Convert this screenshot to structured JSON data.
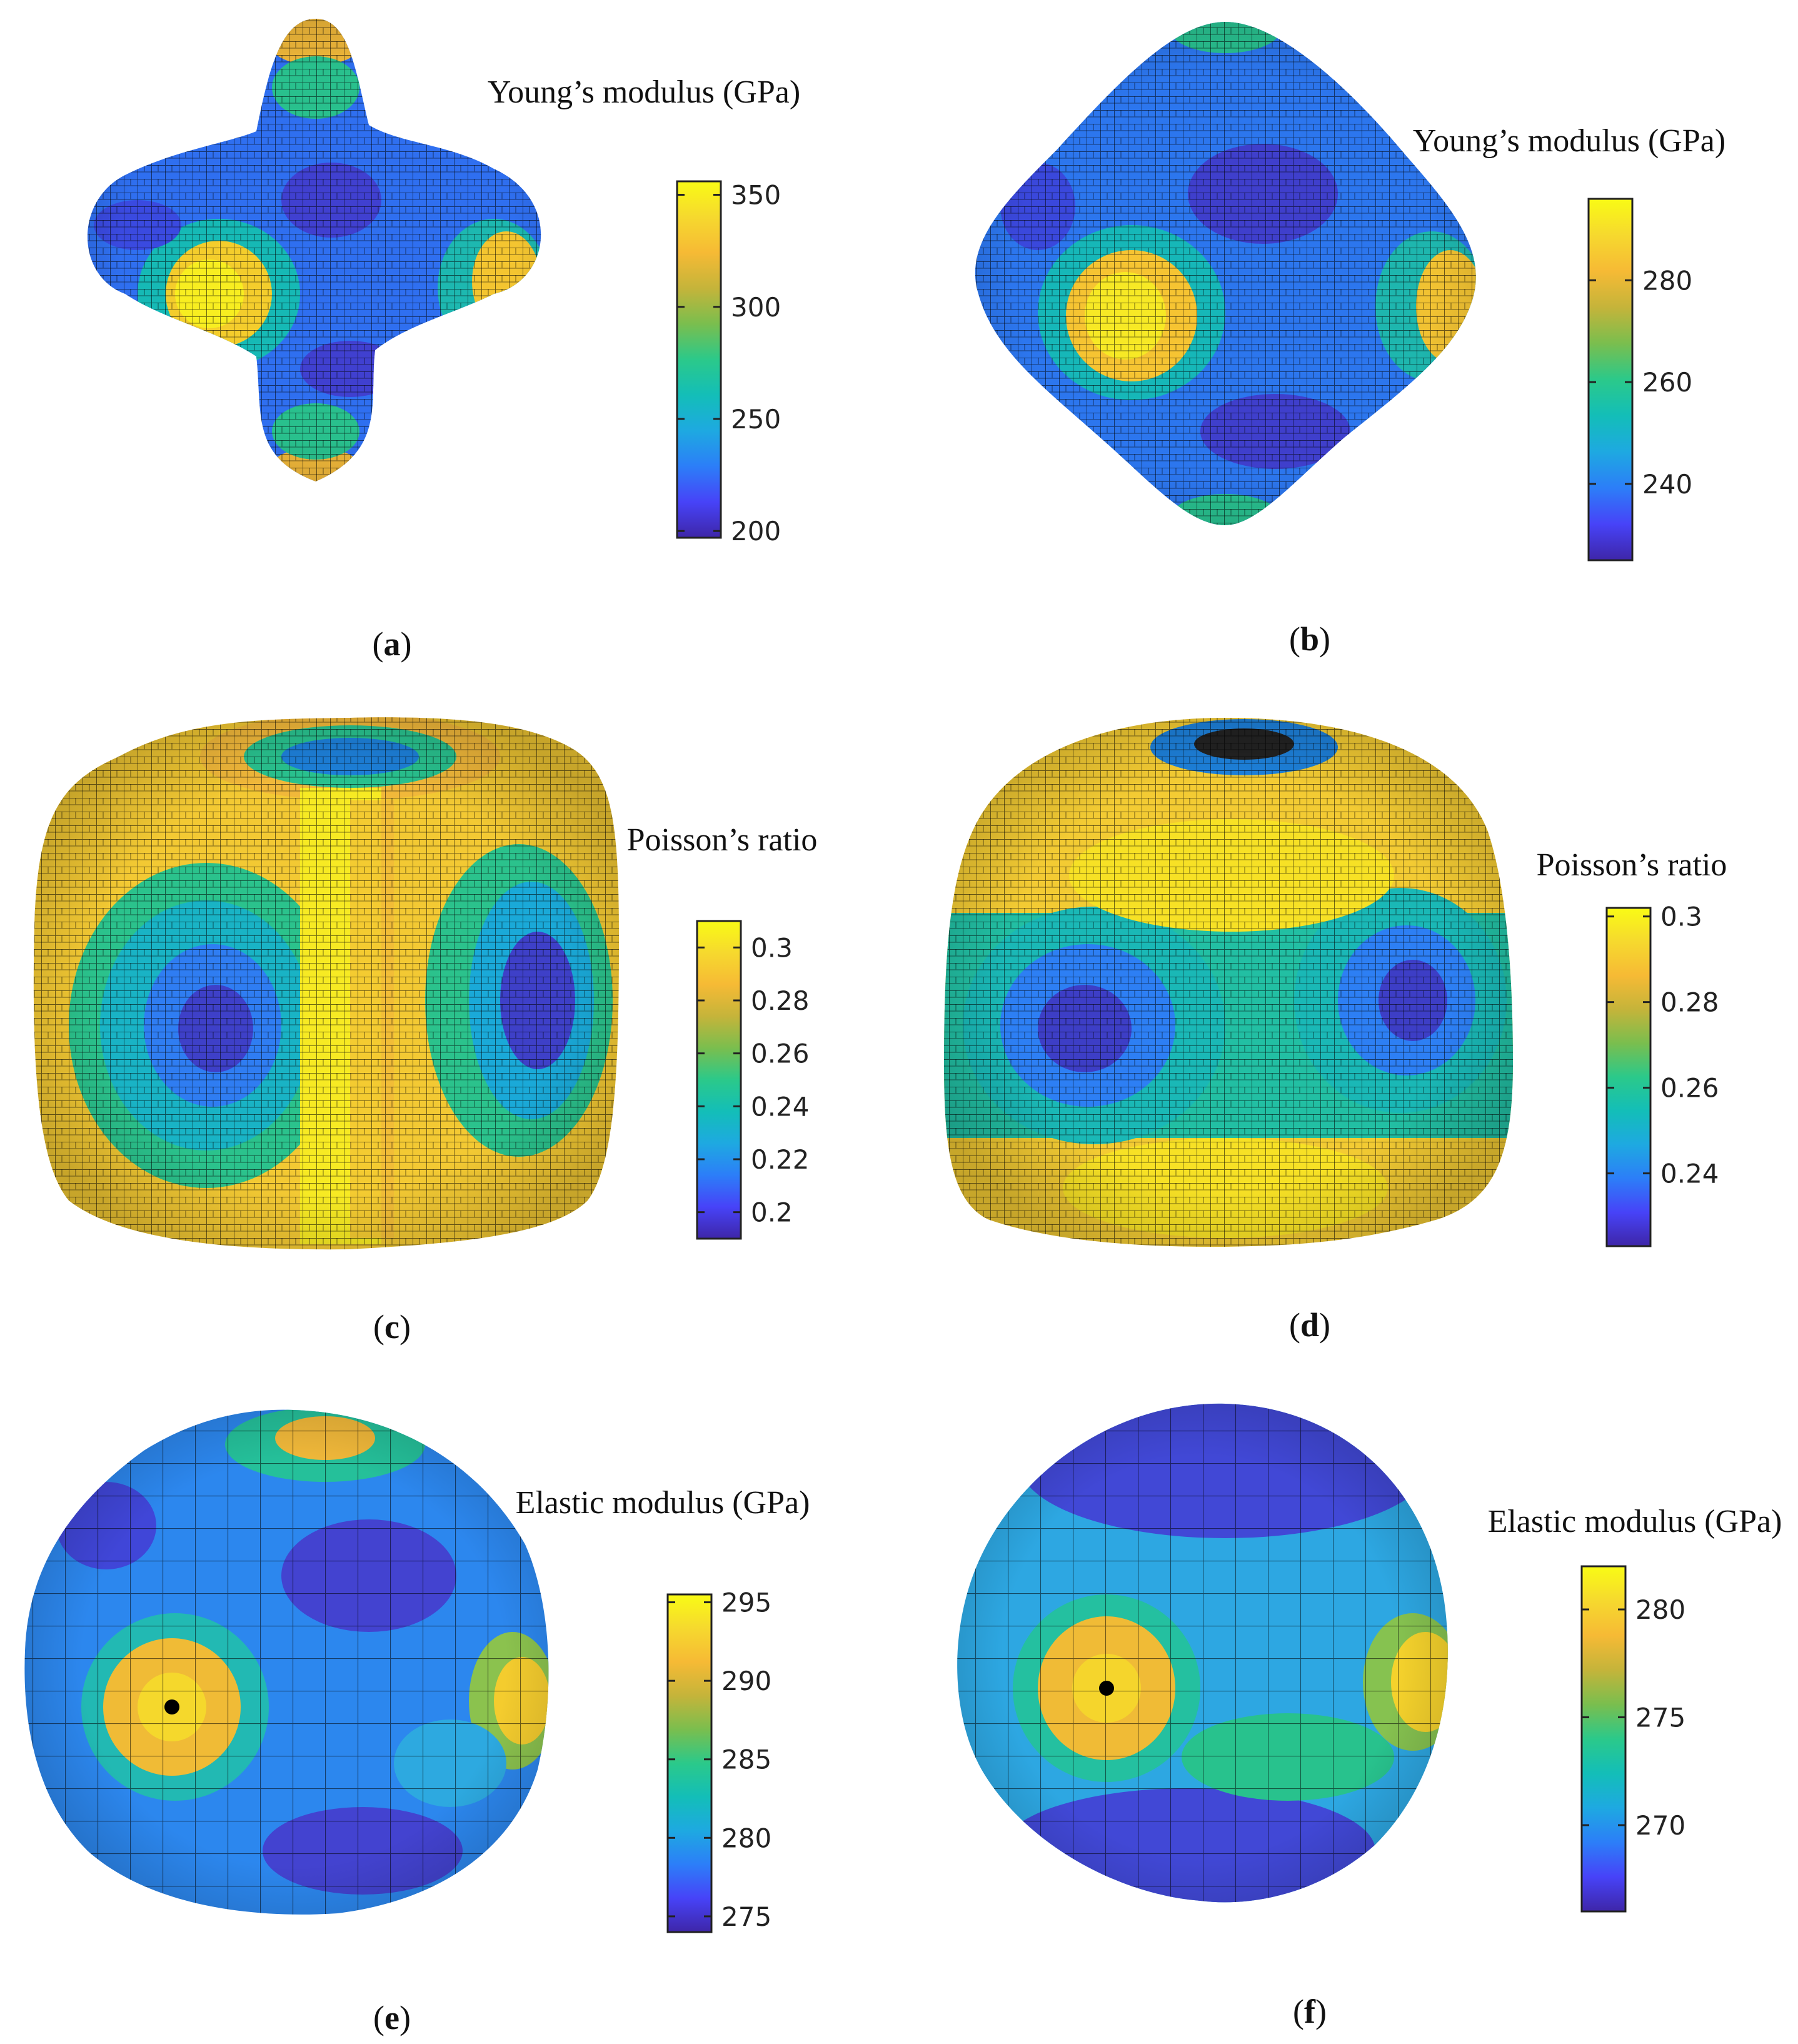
{
  "figure": {
    "colormap": [
      "#3e26a8",
      "#4743f8",
      "#2c7ef8",
      "#1ea9e1",
      "#13beb8",
      "#2bc98a",
      "#7abe4e",
      "#c5b43a",
      "#f6ba35",
      "#f6d92e",
      "#f9fb15"
    ]
  },
  "panels": [
    {
      "id": "a",
      "label": "(a)",
      "label_letter": "a",
      "title": "Young’s modulus (GPa)",
      "shape": "lobed-star",
      "colorbar": {
        "min": 197,
        "max": 356,
        "ticks": [
          200,
          250,
          300,
          350
        ]
      }
    },
    {
      "id": "b",
      "label": "(b)",
      "label_letter": "b",
      "title": "Young’s modulus (GPa)",
      "shape": "rounded-diamond",
      "colorbar": {
        "min": 225,
        "max": 296,
        "ticks": [
          240,
          260,
          280
        ]
      }
    },
    {
      "id": "c",
      "label": "(c)",
      "label_letter": "c",
      "title": "Poisson’s ratio",
      "shape": "rounded-cube",
      "colorbar": {
        "min": 0.19,
        "max": 0.31,
        "ticks": [
          0.2,
          0.22,
          0.24,
          0.26,
          0.28,
          0.3
        ],
        "tick_labels": [
          "0.2",
          "0.22",
          "0.24",
          "0.26",
          "0.28",
          "0.3"
        ]
      }
    },
    {
      "id": "d",
      "label": "(d)",
      "label_letter": "d",
      "title": "Poisson’s ratio",
      "shape": "rounded-cube-2",
      "colorbar": {
        "min": 0.223,
        "max": 0.302,
        "ticks": [
          0.24,
          0.26,
          0.28,
          0.3
        ],
        "tick_labels": [
          "0.24",
          "0.26",
          "0.28",
          "0.3"
        ]
      }
    },
    {
      "id": "e",
      "label": "(e)",
      "label_letter": "e",
      "title": "Elastic modulus (GPa)",
      "shape": "polar-ellipsoid",
      "colorbar": {
        "min": 274,
        "max": 295.5,
        "ticks": [
          275,
          280,
          285,
          290,
          295
        ]
      }
    },
    {
      "id": "f",
      "label": "(f)",
      "label_letter": "f",
      "title": "Elastic modulus (GPa)",
      "shape": "polar-ellipsoid-2",
      "colorbar": {
        "min": 266,
        "max": 282,
        "ticks": [
          270,
          275,
          280
        ]
      }
    }
  ],
  "chart_data": [
    {
      "type": "heatmap",
      "title": "Young’s modulus (GPa)",
      "label": "(a)",
      "colorbar_range": [
        197,
        356
      ],
      "colorbar_ticks": [
        200,
        250,
        300,
        350
      ]
    },
    {
      "type": "heatmap",
      "title": "Young’s modulus (GPa)",
      "label": "(b)",
      "colorbar_range": [
        225,
        296
      ],
      "colorbar_ticks": [
        240,
        260,
        280
      ]
    },
    {
      "type": "heatmap",
      "title": "Poisson’s ratio",
      "label": "(c)",
      "colorbar_range": [
        0.19,
        0.31
      ],
      "colorbar_ticks": [
        0.2,
        0.22,
        0.24,
        0.26,
        0.28,
        0.3
      ]
    },
    {
      "type": "heatmap",
      "title": "Poisson’s ratio",
      "label": "(d)",
      "colorbar_range": [
        0.223,
        0.302
      ],
      "colorbar_ticks": [
        0.24,
        0.26,
        0.28,
        0.3
      ]
    },
    {
      "type": "heatmap",
      "title": "Elastic modulus (GPa)",
      "label": "(e)",
      "colorbar_range": [
        274,
        295.5
      ],
      "colorbar_ticks": [
        275,
        280,
        285,
        290,
        295
      ]
    },
    {
      "type": "heatmap",
      "title": "Elastic modulus (GPa)",
      "label": "(f)",
      "colorbar_range": [
        266,
        282
      ],
      "colorbar_ticks": [
        270,
        275,
        280
      ]
    }
  ]
}
